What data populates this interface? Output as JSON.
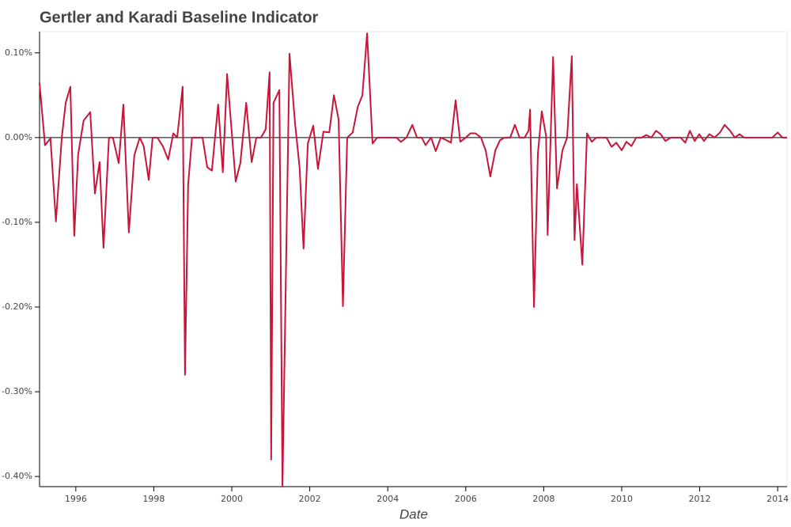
{
  "chart_data": {
    "type": "line",
    "title": "Gertler and Karadi Baseline Indicator",
    "xlabel": "Date",
    "x": [
      1995.07,
      1995.21,
      1995.35,
      1995.49,
      1995.64,
      1995.74,
      1995.86,
      1995.96,
      1996.06,
      1996.2,
      1996.37,
      1996.49,
      1996.61,
      1996.71,
      1996.85,
      1996.95,
      1997.1,
      1997.22,
      1997.36,
      1997.5,
      1997.64,
      1997.74,
      1997.87,
      1997.97,
      1998.09,
      1998.23,
      1998.37,
      1998.5,
      1998.6,
      1998.74,
      1998.8,
      1998.88,
      1998.98,
      1999.1,
      1999.25,
      1999.37,
      1999.49,
      1999.65,
      1999.77,
      1999.88,
      2000.1,
      2000.22,
      2000.37,
      2000.51,
      2000.63,
      2000.75,
      2000.87,
      2000.97,
      2001.01,
      2001.07,
      2001.22,
      2001.3,
      2001.48,
      2001.62,
      2001.74,
      2001.84,
      2001.95,
      2002.09,
      2002.21,
      2002.35,
      2002.5,
      2002.62,
      2002.74,
      2002.85,
      2002.96,
      2003.1,
      2003.23,
      2003.35,
      2003.47,
      2003.61,
      2003.73,
      2003.86,
      2003.98,
      2004.1,
      2004.22,
      2004.34,
      2004.48,
      2004.63,
      2004.75,
      2004.87,
      2004.97,
      2005.11,
      2005.23,
      2005.36,
      2005.5,
      2005.62,
      2005.74,
      2005.86,
      2006.0,
      2006.12,
      2006.25,
      2006.39,
      2006.51,
      2006.63,
      2006.76,
      2006.88,
      2007.0,
      2007.14,
      2007.26,
      2007.38,
      2007.51,
      2007.61,
      2007.65,
      2007.75,
      2007.85,
      2007.95,
      2008.06,
      2008.1,
      2008.24,
      2008.34,
      2008.48,
      2008.6,
      2008.72,
      2008.79,
      2008.85,
      2008.99,
      2009.11,
      2009.23,
      2009.35,
      2009.47,
      2009.61,
      2009.74,
      2009.86,
      2010.0,
      2010.12,
      2010.25,
      2010.37,
      2010.51,
      2010.63,
      2010.76,
      2010.88,
      2011.0,
      2011.12,
      2011.26,
      2011.39,
      2011.51,
      2011.63,
      2011.75,
      2011.87,
      2011.99,
      2012.11,
      2012.25,
      2012.38,
      2012.52,
      2012.64,
      2012.78,
      2012.9,
      2013.02,
      2013.14,
      2013.26,
      2013.38,
      2013.5,
      2013.62,
      2013.74,
      2013.86,
      2014.0,
      2014.12,
      2014.24
    ],
    "series": [
      {
        "name": "Gertler and Karadi Baseline Indicator",
        "color": "#c8153a",
        "values": [
          0.064,
          -0.009,
          -0.001,
          -0.099,
          0,
          0.041,
          0.06,
          -0.116,
          -0.02,
          0.02,
          0.03,
          -0.066,
          -0.029,
          -0.13,
          0,
          0,
          -0.03,
          0.039,
          -0.112,
          -0.021,
          0,
          -0.01,
          -0.05,
          0,
          0,
          -0.01,
          -0.026,
          0.005,
          0,
          0.06,
          -0.28,
          -0.056,
          0,
          0,
          0,
          -0.035,
          -0.039,
          0.039,
          -0.041,
          0.075,
          -0.052,
          -0.03,
          0.041,
          -0.029,
          0,
          0,
          0.01,
          0.077,
          -0.38,
          0.041,
          0.056,
          -0.412,
          0.099,
          0.018,
          -0.036,
          -0.131,
          -0.007,
          0.014,
          -0.037,
          0.007,
          0.006,
          0.05,
          0.021,
          -0.199,
          0,
          0.006,
          0.036,
          0.05,
          0.123,
          -0.007,
          0,
          0,
          0,
          0,
          0,
          -0.005,
          0,
          0.015,
          0,
          0,
          -0.009,
          0,
          -0.016,
          0,
          -0.003,
          -0.006,
          0.044,
          -0.005,
          0,
          0.005,
          0.005,
          0,
          -0.015,
          -0.046,
          -0.015,
          -0.003,
          0,
          0,
          0.015,
          0,
          0,
          0.008,
          0.033,
          -0.2,
          -0.019,
          0.031,
          0.002,
          -0.115,
          0.095,
          -0.06,
          -0.015,
          0,
          0.096,
          -0.121,
          -0.055,
          -0.15,
          0.005,
          -0.005,
          0,
          0,
          0,
          -0.011,
          -0.006,
          -0.015,
          -0.005,
          -0.01,
          0,
          0,
          0.003,
          0,
          0.008,
          0.004,
          -0.004,
          0,
          0,
          0,
          -0.006,
          0.008,
          -0.004,
          0.004,
          -0.004,
          0.004,
          0,
          0.006,
          0.015,
          0.008,
          0,
          0.004,
          0,
          0,
          0,
          0,
          0,
          0,
          0,
          0.006,
          0,
          0
        ]
      }
    ],
    "hline": 0,
    "xlim": [
      1995.07,
      2014.24
    ],
    "xticks": [
      1996,
      1998,
      2000,
      2002,
      2004,
      2006,
      2008,
      2010,
      2012,
      2014
    ],
    "ylim": [
      -0.412,
      0.125
    ],
    "yticks": [
      {
        "value": 0.1,
        "label": "0.10%"
      },
      {
        "value": 0,
        "label": "0.00%"
      },
      {
        "value": -0.1,
        "label": "-0.10%"
      },
      {
        "value": -0.2,
        "label": "-0.20%"
      },
      {
        "value": -0.3,
        "label": "-0.30%"
      },
      {
        "value": -0.4,
        "label": "-0.40%"
      }
    ]
  }
}
